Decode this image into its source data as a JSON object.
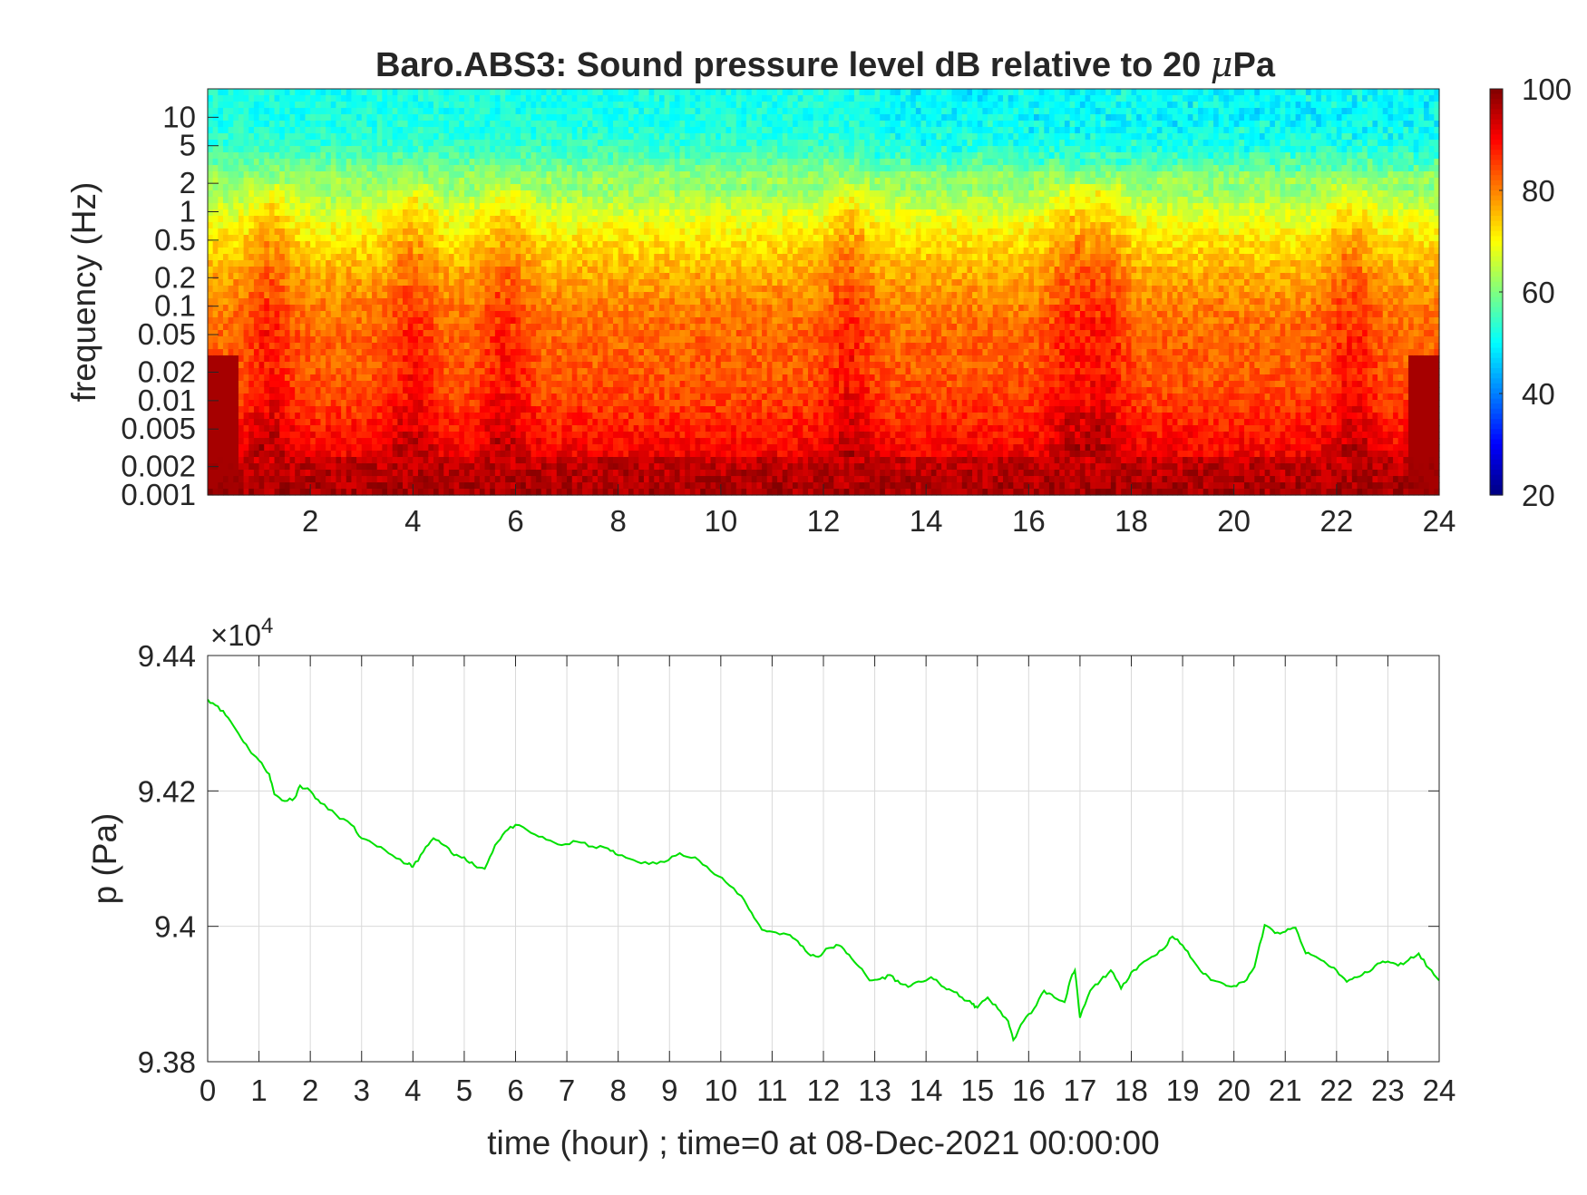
{
  "figure": {
    "background": "#ffffff",
    "axis_color": "#262626",
    "grid_color": "#d9d9d9"
  },
  "chart_data": [
    {
      "type": "heatmap",
      "title": "Baro.ABS3: Sound pressure level dB relative to 20 μPa",
      "title_prefix": "Baro.ABS3: Sound pressure level dB relative to 20 ",
      "title_mu": "μ",
      "title_suffix": "Pa",
      "xlabel": "",
      "ylabel": "frequency (Hz)",
      "xlim": [
        0,
        24
      ],
      "ylim": [
        0.001,
        20
      ],
      "yscale": "log",
      "xticks": [
        2,
        4,
        6,
        8,
        10,
        12,
        14,
        16,
        18,
        20,
        22,
        24
      ],
      "xtick_labels": [
        "2",
        "4",
        "6",
        "8",
        "10",
        "12",
        "14",
        "16",
        "18",
        "20",
        "22",
        "24"
      ],
      "yticks": [
        0.001,
        0.002,
        0.005,
        0.01,
        0.02,
        0.05,
        0.1,
        0.2,
        0.5,
        1,
        2,
        5,
        10
      ],
      "ytick_labels": [
        "0.001",
        "0.002",
        "0.005",
        "0.01",
        "0.02",
        "0.05",
        "0.1",
        "0.2",
        "0.5",
        "1",
        "2",
        "5",
        "10"
      ],
      "colormap": "jet",
      "colorbar": {
        "range": [
          20,
          100
        ],
        "ticks": [
          20,
          40,
          60,
          80,
          100
        ],
        "tick_labels": [
          "20",
          "40",
          "60",
          "80",
          "100"
        ]
      },
      "grid": false,
      "frequency_profile_db": {
        "frequencies_hz": [
          0.001,
          0.002,
          0.005,
          0.01,
          0.02,
          0.05,
          0.1,
          0.2,
          0.5,
          1,
          2,
          5,
          10,
          20
        ],
        "levels_db": [
          97,
          95,
          91,
          88,
          86,
          85,
          83,
          80,
          75,
          70,
          63,
          54,
          52,
          52
        ]
      },
      "activity_peaks_hour": [
        1.2,
        4.0,
        5.8,
        12.5,
        16.8,
        17.5,
        22.3
      ]
    },
    {
      "type": "line",
      "title": "",
      "xlabel": "time (hour) ; time=0 at 08-Dec-2021 00:00:00",
      "ylabel": "p (Pa)",
      "xlim": [
        0,
        24
      ],
      "ylim": [
        93800,
        94400
      ],
      "y_exponent_label": "×10",
      "y_exponent": "4",
      "xticks": [
        0,
        1,
        2,
        3,
        4,
        5,
        6,
        7,
        8,
        9,
        10,
        11,
        12,
        13,
        14,
        15,
        16,
        17,
        18,
        19,
        20,
        21,
        22,
        23,
        24
      ],
      "xtick_labels": [
        "0",
        "1",
        "2",
        "3",
        "4",
        "5",
        "6",
        "7",
        "8",
        "9",
        "10",
        "11",
        "12",
        "13",
        "14",
        "15",
        "16",
        "17",
        "18",
        "19",
        "20",
        "21",
        "22",
        "23",
        "24"
      ],
      "yticks": [
        93800,
        94000,
        94200,
        94400
      ],
      "ytick_labels": [
        "9.38",
        "9.4",
        "9.42",
        "9.44"
      ],
      "grid": true,
      "series": [
        {
          "color": "#00e000",
          "x": [
            0,
            0.2,
            0.4,
            0.6,
            0.8,
            1.0,
            1.2,
            1.3,
            1.5,
            1.7,
            1.8,
            2.0,
            2.2,
            2.5,
            2.8,
            3.0,
            3.3,
            3.6,
            3.9,
            4.0,
            4.2,
            4.4,
            4.6,
            4.8,
            5.0,
            5.2,
            5.4,
            5.6,
            5.8,
            6.0,
            6.3,
            6.6,
            6.9,
            7.2,
            7.5,
            7.8,
            8.0,
            8.3,
            8.6,
            8.9,
            9.2,
            9.5,
            9.8,
            10.1,
            10.4,
            10.6,
            10.8,
            11.0,
            11.3,
            11.5,
            11.7,
            11.9,
            12.1,
            12.3,
            12.5,
            12.7,
            12.9,
            13.1,
            13.3,
            13.5,
            13.7,
            13.9,
            14.1,
            14.3,
            14.5,
            14.7,
            14.9,
            15.0,
            15.2,
            15.4,
            15.6,
            15.7,
            15.9,
            16.1,
            16.3,
            16.5,
            16.7,
            16.8,
            16.9,
            17.0,
            17.2,
            17.4,
            17.6,
            17.8,
            18.0,
            18.2,
            18.4,
            18.6,
            18.8,
            19.0,
            19.2,
            19.4,
            19.6,
            19.8,
            20.0,
            20.2,
            20.4,
            20.6,
            20.8,
            21.0,
            21.2,
            21.4,
            21.6,
            21.8,
            22.0,
            22.2,
            22.4,
            22.6,
            22.8,
            23.0,
            23.2,
            23.4,
            23.6,
            23.8,
            24.0
          ],
          "values": [
            94335,
            94325,
            94308,
            94285,
            94262,
            94245,
            94225,
            94195,
            94185,
            94190,
            94208,
            94200,
            94182,
            94165,
            94150,
            94130,
            94118,
            94105,
            94092,
            94088,
            94110,
            94130,
            94120,
            94105,
            94102,
            94090,
            94085,
            94120,
            94140,
            94150,
            94138,
            94128,
            94120,
            94125,
            94118,
            94115,
            94105,
            94098,
            94092,
            94095,
            94108,
            94102,
            94082,
            94065,
            94045,
            94020,
            93995,
            93992,
            93988,
            93978,
            93960,
            93955,
            93968,
            93972,
            93958,
            93940,
            93920,
            93922,
            93928,
            93915,
            93912,
            93918,
            93925,
            93912,
            93905,
            93895,
            93885,
            93880,
            93895,
            93878,
            93860,
            93832,
            93860,
            93878,
            93905,
            93895,
            93888,
            93918,
            93935,
            93865,
            93905,
            93920,
            93935,
            93908,
            93932,
            93945,
            93955,
            93965,
            93985,
            93972,
            93950,
            93930,
            93920,
            93915,
            93912,
            93918,
            93940,
            94002,
            93990,
            93992,
            93998,
            93960,
            93955,
            93945,
            93935,
            93918,
            93925,
            93932,
            93945,
            93948,
            93942,
            93950,
            93960,
            93938,
            93920
          ]
        }
      ]
    }
  ]
}
